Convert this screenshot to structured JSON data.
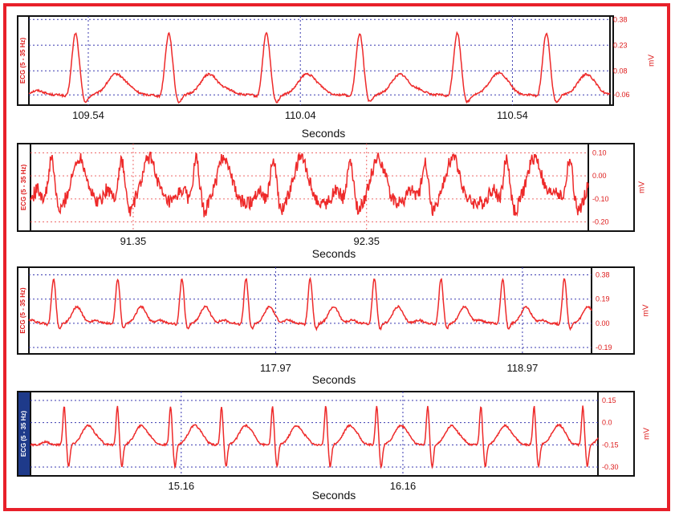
{
  "colors": {
    "border": "#e8202a",
    "trace": "#ee2a2a",
    "grid_blue": "#3a3ab0",
    "grid_red": "#ee6a6a",
    "label_red": "#dd1a1a"
  },
  "chart_data": [
    {
      "type": "line",
      "title": "",
      "channel_label": "ECG (5 - 35 Hz)",
      "ylabel": "mV",
      "xlabel": "Seconds",
      "grid_color": "blue",
      "x_ticks": [
        109.54,
        110.04,
        110.54
      ],
      "xlim": [
        109.4,
        110.77
      ],
      "y_ticks": [
        "0.38",
        "0.23",
        "0.08",
        "-0.06"
      ],
      "ylim": [
        -0.12,
        0.4
      ],
      "series": [
        {
          "beat_times": [
            109.51,
            109.73,
            109.96,
            110.18,
            110.41,
            110.62
          ],
          "r_peak": 0.3,
          "t_peak": 0.06,
          "baseline": -0.06,
          "noise": 0.006
        }
      ]
    },
    {
      "type": "line",
      "title": "",
      "channel_label": "ECG (5 - 35 Hz)",
      "ylabel": "mV",
      "xlabel": "Seconds",
      "grid_color": "red",
      "x_ticks": [
        91.35,
        92.35
      ],
      "xlim": [
        90.91,
        93.3
      ],
      "y_ticks": [
        "0.10",
        "0.00",
        "-0.10",
        "-0.20"
      ],
      "ylim": [
        -0.24,
        0.14
      ],
      "series": [
        {
          "beat_times": [
            91.0,
            91.3,
            91.62,
            91.95,
            92.28,
            92.6,
            92.95,
            93.22
          ],
          "r_peak": 0.07,
          "t_peak": 0.08,
          "baseline": -0.12,
          "noise": 0.03
        }
      ]
    },
    {
      "type": "line",
      "title": "",
      "channel_label": "ECG (5 - 35 Hz)",
      "ylabel": "mV",
      "xlabel": "Seconds",
      "grid_color": "blue",
      "x_ticks": [
        117.97,
        118.97
      ],
      "xlim": [
        116.97,
        119.25
      ],
      "y_ticks": [
        "0.38",
        "0.19",
        "0.00",
        "-0.19"
      ],
      "ylim": [
        -0.24,
        0.44
      ],
      "series": [
        {
          "beat_times": [
            117.07,
            117.33,
            117.59,
            117.85,
            118.11,
            118.37,
            118.64,
            118.89,
            119.14
          ],
          "r_peak": 0.35,
          "t_peak": 0.13,
          "baseline": 0.0,
          "noise": 0.008
        }
      ]
    },
    {
      "type": "line",
      "title": "",
      "channel_label": "ECG (5 - 35 Hz)",
      "ylabel": "mV",
      "xlabel": "Seconds",
      "grid_color": "blue",
      "x_ticks": [
        15.16,
        16.16
      ],
      "xlim": [
        14.48,
        17.04
      ],
      "y_ticks": [
        "0.15",
        "0.0",
        "-0.15",
        "-0.30"
      ],
      "ylim": [
        -0.36,
        0.21
      ],
      "series": [
        {
          "beat_times": [
            14.64,
            14.88,
            15.12,
            15.35,
            15.58,
            15.82,
            16.05,
            16.28,
            16.52,
            16.76,
            16.98
          ],
          "r_peak": 0.11,
          "s_trough": -0.3,
          "t_peak": -0.02,
          "baseline": -0.15,
          "noise": 0.006
        }
      ]
    }
  ]
}
